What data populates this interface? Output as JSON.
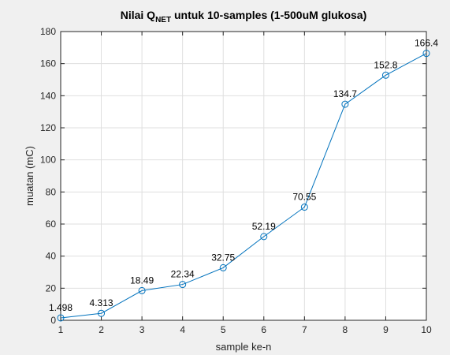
{
  "chart_data": {
    "type": "line",
    "title": {
      "prefix": "Nilai Q",
      "subscript": "NET",
      "suffix": " untuk 10-samples (1-500uM glukosa)"
    },
    "xlabel": "sample ke-n",
    "ylabel": "muatan (mC)",
    "x": [
      1,
      2,
      3,
      4,
      5,
      6,
      7,
      8,
      9,
      10
    ],
    "series": [
      {
        "values": [
          1.498,
          4.313,
          18.49,
          22.34,
          32.75,
          52.19,
          70.55,
          134.7,
          152.8,
          166.4
        ],
        "labels": [
          "1.498",
          "4.313",
          "18.49",
          "22.34",
          "32.75",
          "52.19",
          "70.55",
          "134.7",
          "152.8",
          "166.4"
        ],
        "color": "#0072bd",
        "marker": "circle"
      }
    ],
    "xlim": [
      1,
      10
    ],
    "ylim": [
      0,
      180
    ],
    "xticks": [
      1,
      2,
      3,
      4,
      5,
      6,
      7,
      8,
      9,
      10
    ],
    "yticks": [
      0,
      20,
      40,
      60,
      80,
      100,
      120,
      140,
      160,
      180
    ],
    "grid": true,
    "background": "#ffffff",
    "figure_background": "#f0f0f0"
  }
}
